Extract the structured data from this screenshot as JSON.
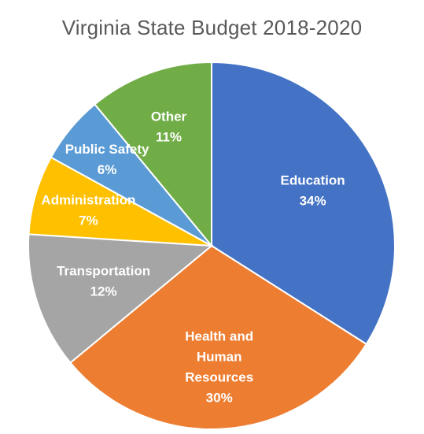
{
  "chart_data": {
    "type": "pie",
    "title": "Virginia State Budget 2018-2020",
    "slices": [
      {
        "category": "Education",
        "label_lines": [
          "Education"
        ],
        "value": 34,
        "value_label": "34%",
        "color": "#4472C4"
      },
      {
        "category": "Health and Human Resources",
        "label_lines": [
          "Health and",
          "Human",
          "Resources"
        ],
        "value": 30,
        "value_label": "30%",
        "color": "#ED7D31"
      },
      {
        "category": "Transportation",
        "label_lines": [
          "Transportation"
        ],
        "value": 12,
        "value_label": "12%",
        "color": "#A5A5A5"
      },
      {
        "category": "Administration",
        "label_lines": [
          "Administration"
        ],
        "value": 7,
        "value_label": "7%",
        "color": "#FFC000"
      },
      {
        "category": "Public Safety",
        "label_lines": [
          "Public Safety"
        ],
        "value": 6,
        "value_label": "6%",
        "color": "#5B9BD5"
      },
      {
        "category": "Other",
        "label_lines": [
          "Other"
        ],
        "value": 11,
        "value_label": "11%",
        "color": "#70AD47"
      }
    ],
    "start_angle": "12 o'clock",
    "direction": "clockwise",
    "legend": "none"
  }
}
